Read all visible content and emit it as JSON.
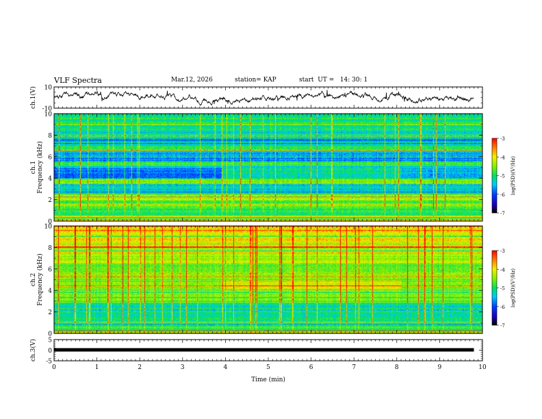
{
  "header": {
    "title": "VLF Spectra",
    "date": "Mar.12, 2026",
    "station": "station= KAP",
    "start": "start  UT =   14: 30: 1"
  },
  "chart_data": [
    {
      "type": "line",
      "name": "ch1-waveform",
      "ylabel": "ch.1(V)",
      "ylim": [
        -10,
        10
      ],
      "yticks": [
        10,
        -10
      ],
      "xlim": [
        0,
        10
      ],
      "duration_min": 9.8
    },
    {
      "type": "heatmap",
      "name": "ch1-spectrogram",
      "ylabel": "ch.1 Frequency (kHz)",
      "ylim": [
        0,
        10
      ],
      "yticks": [
        0,
        2,
        4,
        6,
        8,
        10
      ],
      "xlim": [
        0,
        10
      ],
      "colorbar": {
        "label": "log(PSD)(V²/Hz)",
        "range": [
          -7,
          -3
        ],
        "ticks": [
          -3,
          -4,
          -5,
          -6,
          -7
        ]
      }
    },
    {
      "type": "heatmap",
      "name": "ch2-spectrogram",
      "ylabel": "ch.2 Frequency (kHz)",
      "ylim": [
        0,
        10
      ],
      "yticks": [
        0,
        2,
        4,
        6,
        8,
        10
      ],
      "xlim": [
        0,
        10
      ],
      "colorbar": {
        "label": "log(PSD)(V²/Hz)",
        "range": [
          -7,
          -3
        ],
        "ticks": [
          -3,
          -4,
          -5,
          -6,
          -7
        ]
      }
    },
    {
      "type": "line",
      "name": "ch3-waveform",
      "ylabel": "ch.3(V)",
      "ylim": [
        -5,
        5
      ],
      "yticks": [
        5,
        0,
        -5
      ],
      "xlim": [
        0,
        10
      ],
      "xticks": [
        0,
        1,
        2,
        3,
        4,
        5,
        6,
        7,
        8,
        9,
        10
      ],
      "xlabel": "Time (min)"
    }
  ],
  "colors": {
    "axis": "#000000",
    "trace": "#000000"
  }
}
